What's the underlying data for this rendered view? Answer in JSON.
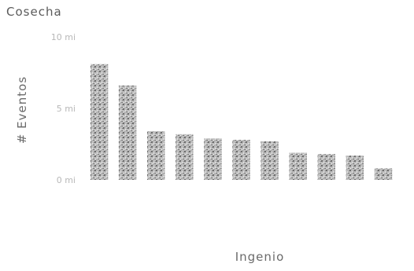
{
  "chart_title": "Cosecha",
  "chart_data": {
    "type": "bar",
    "title": "Cosecha",
    "xlabel": "Ingenio",
    "ylabel": "# Eventos",
    "ylim": [
      0,
      10000000
    ],
    "yticks": [
      {
        "value": 0,
        "label": "0 mi"
      },
      {
        "value": 5000000,
        "label": "5 mi"
      },
      {
        "value": 10000000,
        "label": "10 mi"
      }
    ],
    "grid": false,
    "legend": "none",
    "bar_color": "#9a9a9a",
    "categories": [
      "",
      "",
      "",
      "",
      "",
      "",
      "",
      "",
      "",
      "",
      ""
    ],
    "values": [
      8100000,
      6600000,
      3400000,
      3200000,
      2900000,
      2800000,
      2700000,
      1900000,
      1800000,
      1700000,
      800000
    ]
  }
}
